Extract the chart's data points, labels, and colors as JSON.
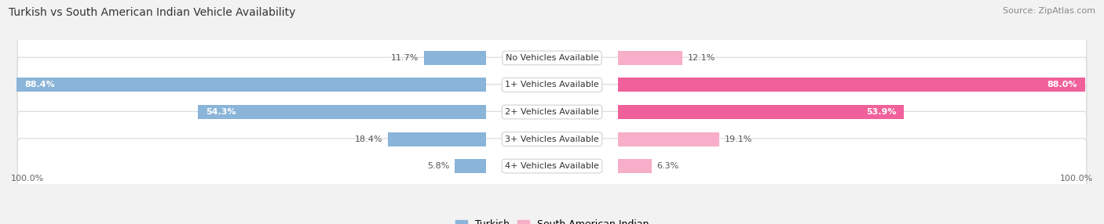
{
  "title": "Turkish vs South American Indian Vehicle Availability",
  "source": "Source: ZipAtlas.com",
  "categories": [
    "No Vehicles Available",
    "1+ Vehicles Available",
    "2+ Vehicles Available",
    "3+ Vehicles Available",
    "4+ Vehicles Available"
  ],
  "turkish_values": [
    11.7,
    88.4,
    54.3,
    18.4,
    5.8
  ],
  "sai_values": [
    12.1,
    88.0,
    53.9,
    19.1,
    6.3
  ],
  "turkish_color": "#8ab4d8",
  "sai_color_light": "#f7aec8",
  "sai_color_dark": "#f0609a",
  "bg_color": "#f2f2f2",
  "row_bg_color": "#ffffff",
  "row_outline_color": "#d8d8d8",
  "max_value": 100.0,
  "title_fontsize": 10,
  "source_fontsize": 8,
  "label_fontsize": 8,
  "value_fontsize": 8,
  "legend_fontsize": 9,
  "axis_label": "100.0%"
}
